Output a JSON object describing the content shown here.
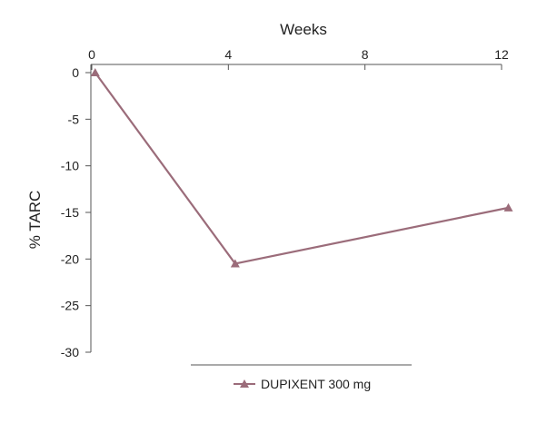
{
  "chart_data": {
    "type": "line",
    "xlabel": "Weeks",
    "ylabel": "% TARC",
    "x_ticks": [
      0,
      4,
      8,
      12
    ],
    "y_ticks": [
      0,
      -5,
      -10,
      -15,
      -20,
      -25,
      -30
    ],
    "xlim": [
      0,
      12
    ],
    "ylim": [
      -30,
      0
    ],
    "x_axis_position": "top",
    "legend_position": "bottom",
    "series": [
      {
        "name": "DUPIXENT 300 mg",
        "marker": "triangle",
        "color": "#9b6c7a",
        "x": [
          0.1,
          4.2,
          12.2
        ],
        "y": [
          0,
          -20.5,
          -14.5
        ]
      }
    ]
  }
}
